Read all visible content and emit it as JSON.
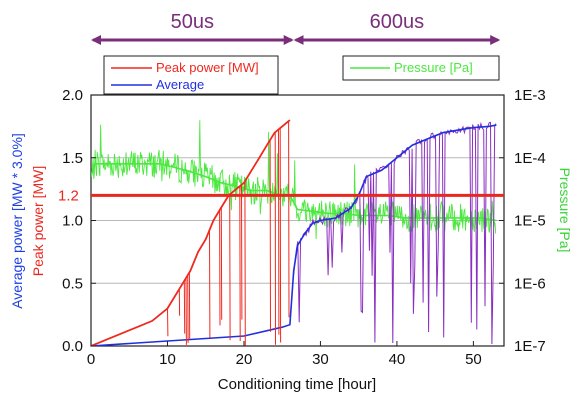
{
  "chart_data": {
    "type": "line",
    "xlabel": "Conditioning time [hour]",
    "ylabel_left_top": "Peak power [MW]",
    "ylabel_left_bottom": "Average power [MW * 3.0%]",
    "ylabel_right": "Pressure [Pa]",
    "xlim": [
      0,
      54
    ],
    "ylim_left": [
      0,
      2.0
    ],
    "ylim_right_log": [
      1e-07,
      0.001
    ],
    "x_ticks": [
      "0",
      "10",
      "20",
      "30",
      "40",
      "50"
    ],
    "y_ticks_left": [
      "0.0",
      "0.5",
      "1.0",
      "1.5",
      "2.0"
    ],
    "y_ticks_right": [
      "1E-7",
      "1E-6",
      "1E-5",
      "1E-4",
      "1E-3"
    ],
    "grid": true,
    "legend_left": [
      "Peak power [MW]",
      "Average"
    ],
    "legend_right": [
      "Pressure [Pa]"
    ],
    "reference_line": {
      "value": 1.2,
      "label": "1.2",
      "color": "#e8281e"
    },
    "phases": [
      {
        "label": "50us",
        "from": 0,
        "to": 26.5
      },
      {
        "label": "600us",
        "from": 26.5,
        "to": 53.5
      }
    ],
    "colors": {
      "peak": "#f0281e",
      "average": "#2030e0",
      "pressure": "#4ce840",
      "phase": "#7a2e7a",
      "overlay_purple": "#8a2fc0"
    },
    "series": [
      {
        "name": "Peak power [MW]",
        "x": [
          0,
          2,
          4,
          6,
          8,
          10,
          12,
          13,
          14,
          15,
          16,
          17,
          18,
          19,
          20,
          21,
          22,
          23,
          24,
          25,
          26
        ],
        "values": [
          0.0,
          0.05,
          0.1,
          0.15,
          0.2,
          0.3,
          0.5,
          0.6,
          0.75,
          0.85,
          1.0,
          1.1,
          1.2,
          1.25,
          1.3,
          1.4,
          1.5,
          1.6,
          1.7,
          1.75,
          1.8
        ]
      },
      {
        "name": "Average",
        "x": [
          0,
          5,
          10,
          15,
          20,
          25,
          26,
          26.5,
          27,
          28,
          29,
          30,
          32,
          34,
          35,
          36,
          38,
          40,
          42,
          44,
          46,
          48,
          50,
          52,
          53
        ],
        "values": [
          0.0,
          0.02,
          0.04,
          0.06,
          0.08,
          0.15,
          0.17,
          0.6,
          0.8,
          0.9,
          0.98,
          1.0,
          1.02,
          1.1,
          1.2,
          1.35,
          1.4,
          1.5,
          1.6,
          1.65,
          1.7,
          1.72,
          1.74,
          1.75,
          1.76
        ]
      },
      {
        "name": "Pressure [Pa]",
        "x": [
          0,
          0.5,
          1,
          3,
          5,
          7,
          9,
          11,
          13,
          15,
          17,
          19,
          21,
          23,
          25,
          26,
          27,
          29,
          31,
          33,
          35,
          37,
          39,
          41,
          43,
          45,
          47,
          49,
          51,
          53
        ],
        "values": [
          5e-05,
          8e-05,
          8e-05,
          8e-05,
          8e-05,
          8e-05,
          8e-05,
          7e-05,
          6e-05,
          5e-05,
          4e-05,
          3.5e-05,
          3e-05,
          3e-05,
          2.5e-05,
          2.5e-05,
          1.5e-05,
          1.4e-05,
          1.3e-05,
          1.3e-05,
          1.2e-05,
          1.2e-05,
          1.2e-05,
          1.1e-05,
          1.1e-05,
          1.1e-05,
          1.1e-05,
          1.1e-05,
          1.1e-05,
          1e-05
        ]
      }
    ]
  }
}
